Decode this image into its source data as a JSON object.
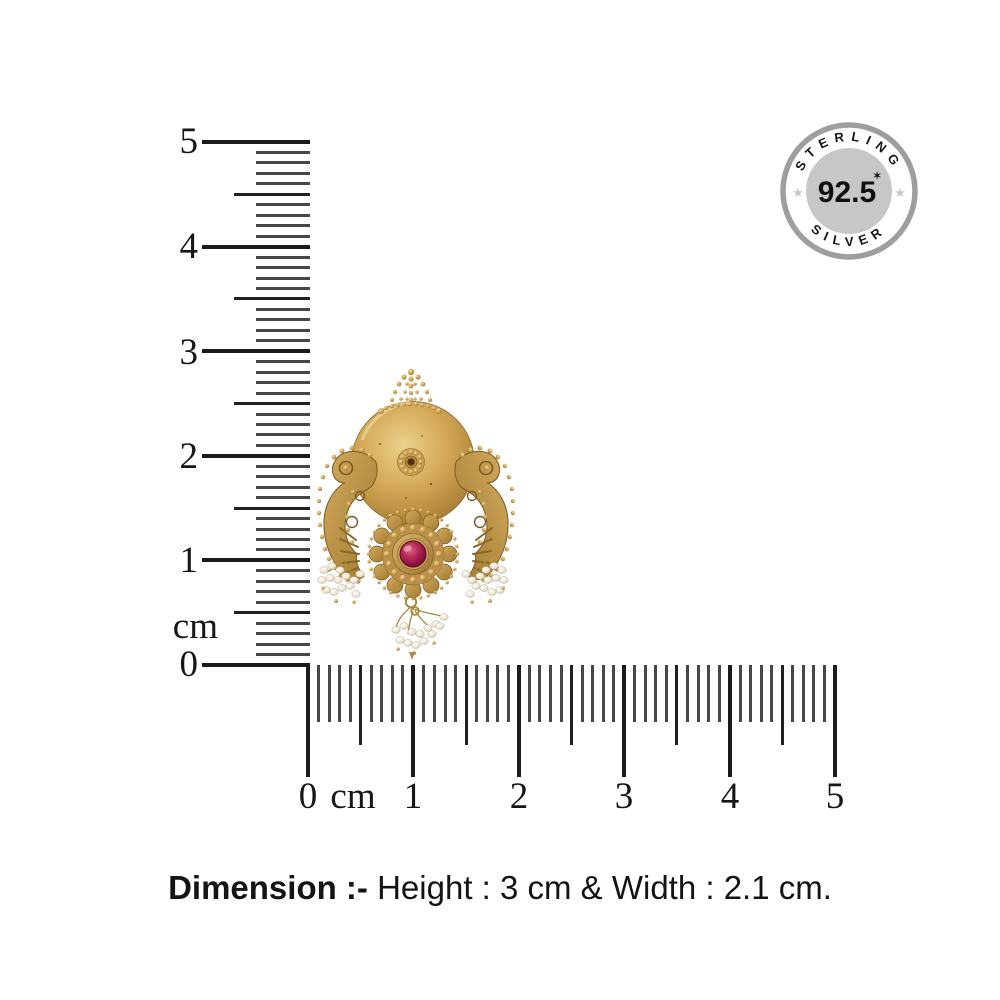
{
  "page": {
    "background": "#ffffff"
  },
  "badge": {
    "top_text": "STERLING",
    "bottom_text": "SILVER",
    "purity_value": "92.5",
    "purity_mark": "✶",
    "star": "★"
  },
  "rulers": {
    "unit": "cm",
    "vertical": {
      "cm_min": 0,
      "cm_max": 5,
      "subdivisions_per_cm": 10,
      "labels": [
        "5",
        "4",
        "3",
        "2",
        "1",
        "cm",
        "0"
      ]
    },
    "horizontal": {
      "cm_min": 0,
      "cm_max": 5,
      "subdivisions_per_cm": 10,
      "labels": [
        "0",
        "cm",
        "1",
        "2",
        "3",
        "4",
        "5"
      ]
    }
  },
  "caption": {
    "label": "Dimension :-",
    "value": "Height : 3 cm & Width : 2.1 cm."
  },
  "colors": {
    "page-bg": "#ffffff",
    "ruler-major": "#1b1b1b",
    "ruler-minor": "#474747",
    "gold-light": "#e9c87e",
    "gold-main": "#c89e52",
    "gold-dark": "#9a742f",
    "gold-deep": "#7a5a24",
    "stone-red": "#8c1340",
    "pearl-white": "#f3eee1",
    "badge-ring": "#9e9e9e",
    "badge-center": "#c7c7c7",
    "badge-text": "#141414",
    "text": "#141414"
  }
}
